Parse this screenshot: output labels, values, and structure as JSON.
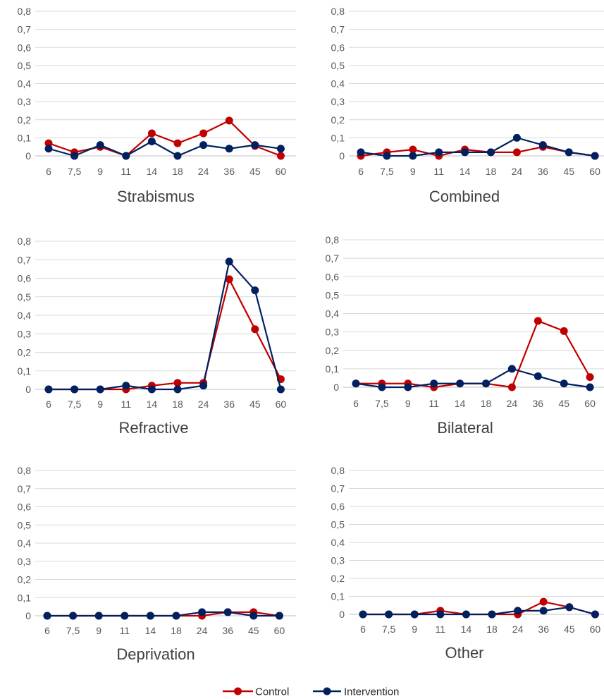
{
  "colors": {
    "control": "#c00000",
    "intervention": "#002060"
  },
  "legend": [
    {
      "label": "Control",
      "series_key": "control"
    },
    {
      "label": "Intervention",
      "series_key": "intervention"
    }
  ],
  "chart_data": [
    {
      "type": "line",
      "title": "Strabismus",
      "categories": [
        "6",
        "7,5",
        "9",
        "11",
        "14",
        "18",
        "24",
        "36",
        "45",
        "60"
      ],
      "yticks": [
        "0",
        "0,1",
        "0,2",
        "0,3",
        "0,4",
        "0,5",
        "0,6",
        "0,7",
        "0,8"
      ],
      "ylim": [
        0,
        0.8
      ],
      "grid": true,
      "series": [
        {
          "name": "Control",
          "values": [
            0.07,
            0.02,
            0.05,
            0.0,
            0.125,
            0.07,
            0.125,
            0.195,
            0.055,
            0.0
          ]
        },
        {
          "name": "Intervention",
          "values": [
            0.04,
            0.0,
            0.06,
            0.0,
            0.08,
            0.0,
            0.06,
            0.04,
            0.06,
            0.04
          ]
        }
      ]
    },
    {
      "type": "line",
      "title": "Combined",
      "categories": [
        "6",
        "7,5",
        "9",
        "11",
        "14",
        "18",
        "24",
        "36",
        "45",
        "60"
      ],
      "yticks": [
        "0",
        "0,1",
        "0,2",
        "0,3",
        "0,4",
        "0,5",
        "0,6",
        "0,7",
        "0,8"
      ],
      "ylim": [
        0,
        0.8
      ],
      "grid": true,
      "series": [
        {
          "name": "Control",
          "values": [
            0.0,
            0.02,
            0.035,
            0.0,
            0.035,
            0.02,
            0.02,
            0.05,
            0.02,
            0.0
          ]
        },
        {
          "name": "Intervention",
          "values": [
            0.02,
            0.0,
            0.0,
            0.02,
            0.02,
            0.02,
            0.1,
            0.06,
            0.02,
            0.0
          ]
        }
      ]
    },
    {
      "type": "line",
      "title": "Refractive",
      "categories": [
        "6",
        "7,5",
        "9",
        "11",
        "14",
        "18",
        "24",
        "36",
        "45",
        "60"
      ],
      "yticks": [
        "0",
        "0,1",
        "0,2",
        "0,3",
        "0,4",
        "0,5",
        "0,6",
        "0,7",
        "0,8"
      ],
      "ylim": [
        0,
        0.8
      ],
      "grid": true,
      "series": [
        {
          "name": "Control",
          "values": [
            0.0,
            0.0,
            0.0,
            0.0,
            0.02,
            0.035,
            0.035,
            0.595,
            0.325,
            0.055
          ]
        },
        {
          "name": "Intervention",
          "values": [
            0.0,
            0.0,
            0.0,
            0.02,
            0.0,
            0.0,
            0.02,
            0.69,
            0.535,
            0.0
          ]
        }
      ]
    },
    {
      "type": "line",
      "title": "Bilateral",
      "categories": [
        "6",
        "7,5",
        "9",
        "11",
        "14",
        "18",
        "24",
        "36",
        "45",
        "60"
      ],
      "yticks": [
        "0",
        "0,1",
        "0,2",
        "0,3",
        "0,4",
        "0,5",
        "0,6",
        "0,7",
        "0,8"
      ],
      "ylim": [
        0,
        0.8
      ],
      "grid": true,
      "series": [
        {
          "name": "Control",
          "values": [
            0.02,
            0.02,
            0.02,
            0.0,
            0.02,
            0.02,
            0.0,
            0.36,
            0.305,
            0.055
          ]
        },
        {
          "name": "Intervention",
          "values": [
            0.02,
            0.0,
            0.0,
            0.02,
            0.02,
            0.02,
            0.1,
            0.06,
            0.02,
            0.0
          ]
        }
      ]
    },
    {
      "type": "line",
      "title": "Deprivation",
      "categories": [
        "6",
        "7,5",
        "9",
        "11",
        "14",
        "18",
        "24",
        "36",
        "45",
        "60"
      ],
      "yticks": [
        "0",
        "0,1",
        "0,2",
        "0,3",
        "0,4",
        "0,5",
        "0,6",
        "0,7",
        "0,8"
      ],
      "ylim": [
        0,
        0.8
      ],
      "grid": true,
      "series": [
        {
          "name": "Control",
          "values": [
            0.0,
            0.0,
            0.0,
            0.0,
            0.0,
            0.0,
            0.0,
            0.02,
            0.02,
            0.0
          ]
        },
        {
          "name": "Intervention",
          "values": [
            0.0,
            0.0,
            0.0,
            0.0,
            0.0,
            0.0,
            0.02,
            0.02,
            0.0,
            0.0
          ]
        }
      ]
    },
    {
      "type": "line",
      "title": "Other",
      "categories": [
        "6",
        "7,5",
        "9",
        "11",
        "14",
        "18",
        "24",
        "36",
        "45",
        "60"
      ],
      "yticks": [
        "0",
        "0,1",
        "0,2",
        "0,3",
        "0,4",
        "0,5",
        "0,6",
        "0,7",
        "0,8"
      ],
      "ylim": [
        0,
        0.8
      ],
      "grid": true,
      "series": [
        {
          "name": "Control",
          "values": [
            0.0,
            0.0,
            0.0,
            0.02,
            0.0,
            0.0,
            0.0,
            0.07,
            0.04,
            0.0
          ]
        },
        {
          "name": "Intervention",
          "values": [
            0.0,
            0.0,
            0.0,
            0.0,
            0.0,
            0.0,
            0.02,
            0.02,
            0.04,
            0.0
          ]
        }
      ]
    }
  ]
}
